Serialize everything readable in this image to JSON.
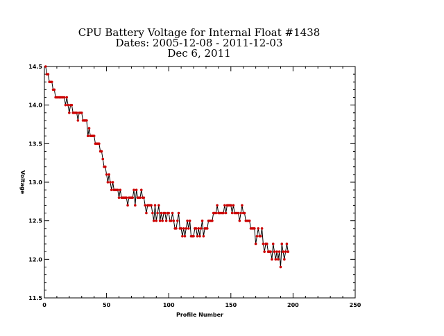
{
  "chart_data": {
    "type": "line",
    "title_lines": [
      "CPU Battery Voltage for Internal Float #1438",
      "Dates:  2005-12-08 -  2011-12-03",
      "Dec  6, 2011"
    ],
    "xlabel": "Profile Number",
    "ylabel": "Voltage",
    "xlim": [
      0,
      250
    ],
    "ylim": [
      11.5,
      14.5
    ],
    "x_ticks": [
      0,
      50,
      100,
      150,
      200,
      250
    ],
    "x_tick_labels": [
      "0",
      "50",
      "100",
      "150",
      "200",
      "250"
    ],
    "y_ticks": [
      11.5,
      12.0,
      12.5,
      13.0,
      13.5,
      14.0,
      14.5
    ],
    "y_tick_labels": [
      "11.5",
      "12.0",
      "12.5",
      "13.0",
      "13.5",
      "14.0",
      "14.5"
    ],
    "grid": false,
    "line_color": "#000000",
    "marker_color": "#cc0000",
    "x_start": 1,
    "values": [
      14.5,
      14.4,
      14.4,
      14.3,
      14.3,
      14.3,
      14.2,
      14.2,
      14.1,
      14.1,
      14.1,
      14.1,
      14.1,
      14.1,
      14.1,
      14.1,
      14.0,
      14.1,
      14.0,
      13.9,
      14.0,
      14.0,
      13.9,
      13.9,
      13.9,
      13.9,
      13.8,
      13.9,
      13.9,
      13.9,
      13.8,
      13.8,
      13.8,
      13.8,
      13.6,
      13.7,
      13.6,
      13.6,
      13.6,
      13.6,
      13.5,
      13.5,
      13.5,
      13.5,
      13.4,
      13.4,
      13.3,
      13.2,
      13.2,
      13.1,
      13.0,
      13.1,
      13.0,
      12.9,
      13.0,
      12.9,
      12.9,
      12.9,
      12.9,
      12.8,
      12.9,
      12.8,
      12.8,
      12.8,
      12.8,
      12.8,
      12.7,
      12.8,
      12.8,
      12.8,
      12.8,
      12.9,
      12.7,
      12.9,
      12.8,
      12.8,
      12.8,
      12.9,
      12.8,
      12.8,
      12.7,
      12.6,
      12.7,
      12.7,
      12.7,
      12.7,
      12.6,
      12.5,
      12.7,
      12.5,
      12.6,
      12.7,
      12.5,
      12.6,
      12.5,
      12.6,
      12.6,
      12.5,
      12.6,
      12.6,
      12.5,
      12.5,
      12.6,
      12.5,
      12.4,
      12.4,
      12.5,
      12.6,
      12.4,
      12.4,
      12.3,
      12.4,
      12.3,
      12.4,
      12.5,
      12.4,
      12.5,
      12.3,
      12.3,
      12.3,
      12.4,
      12.4,
      12.3,
      12.4,
      12.3,
      12.4,
      12.5,
      12.3,
      12.4,
      12.4,
      12.4,
      12.5,
      12.5,
      12.5,
      12.5,
      12.6,
      12.6,
      12.6,
      12.7,
      12.6,
      12.6,
      12.6,
      12.6,
      12.6,
      12.7,
      12.6,
      12.7,
      12.7,
      12.7,
      12.7,
      12.6,
      12.7,
      12.6,
      12.6,
      12.6,
      12.6,
      12.5,
      12.6,
      12.7,
      12.6,
      12.6,
      12.5,
      12.5,
      12.5,
      12.5,
      12.4,
      12.4,
      12.4,
      12.4,
      12.2,
      12.3,
      12.4,
      12.3,
      12.3,
      12.4,
      12.2,
      12.1,
      12.2,
      12.2,
      12.1,
      12.1,
      12.1,
      12.0,
      12.2,
      12.1,
      12.0,
      12.1,
      12.0,
      12.1,
      11.9,
      12.2,
      12.1,
      12.0,
      12.1,
      12.2,
      12.1
    ]
  }
}
